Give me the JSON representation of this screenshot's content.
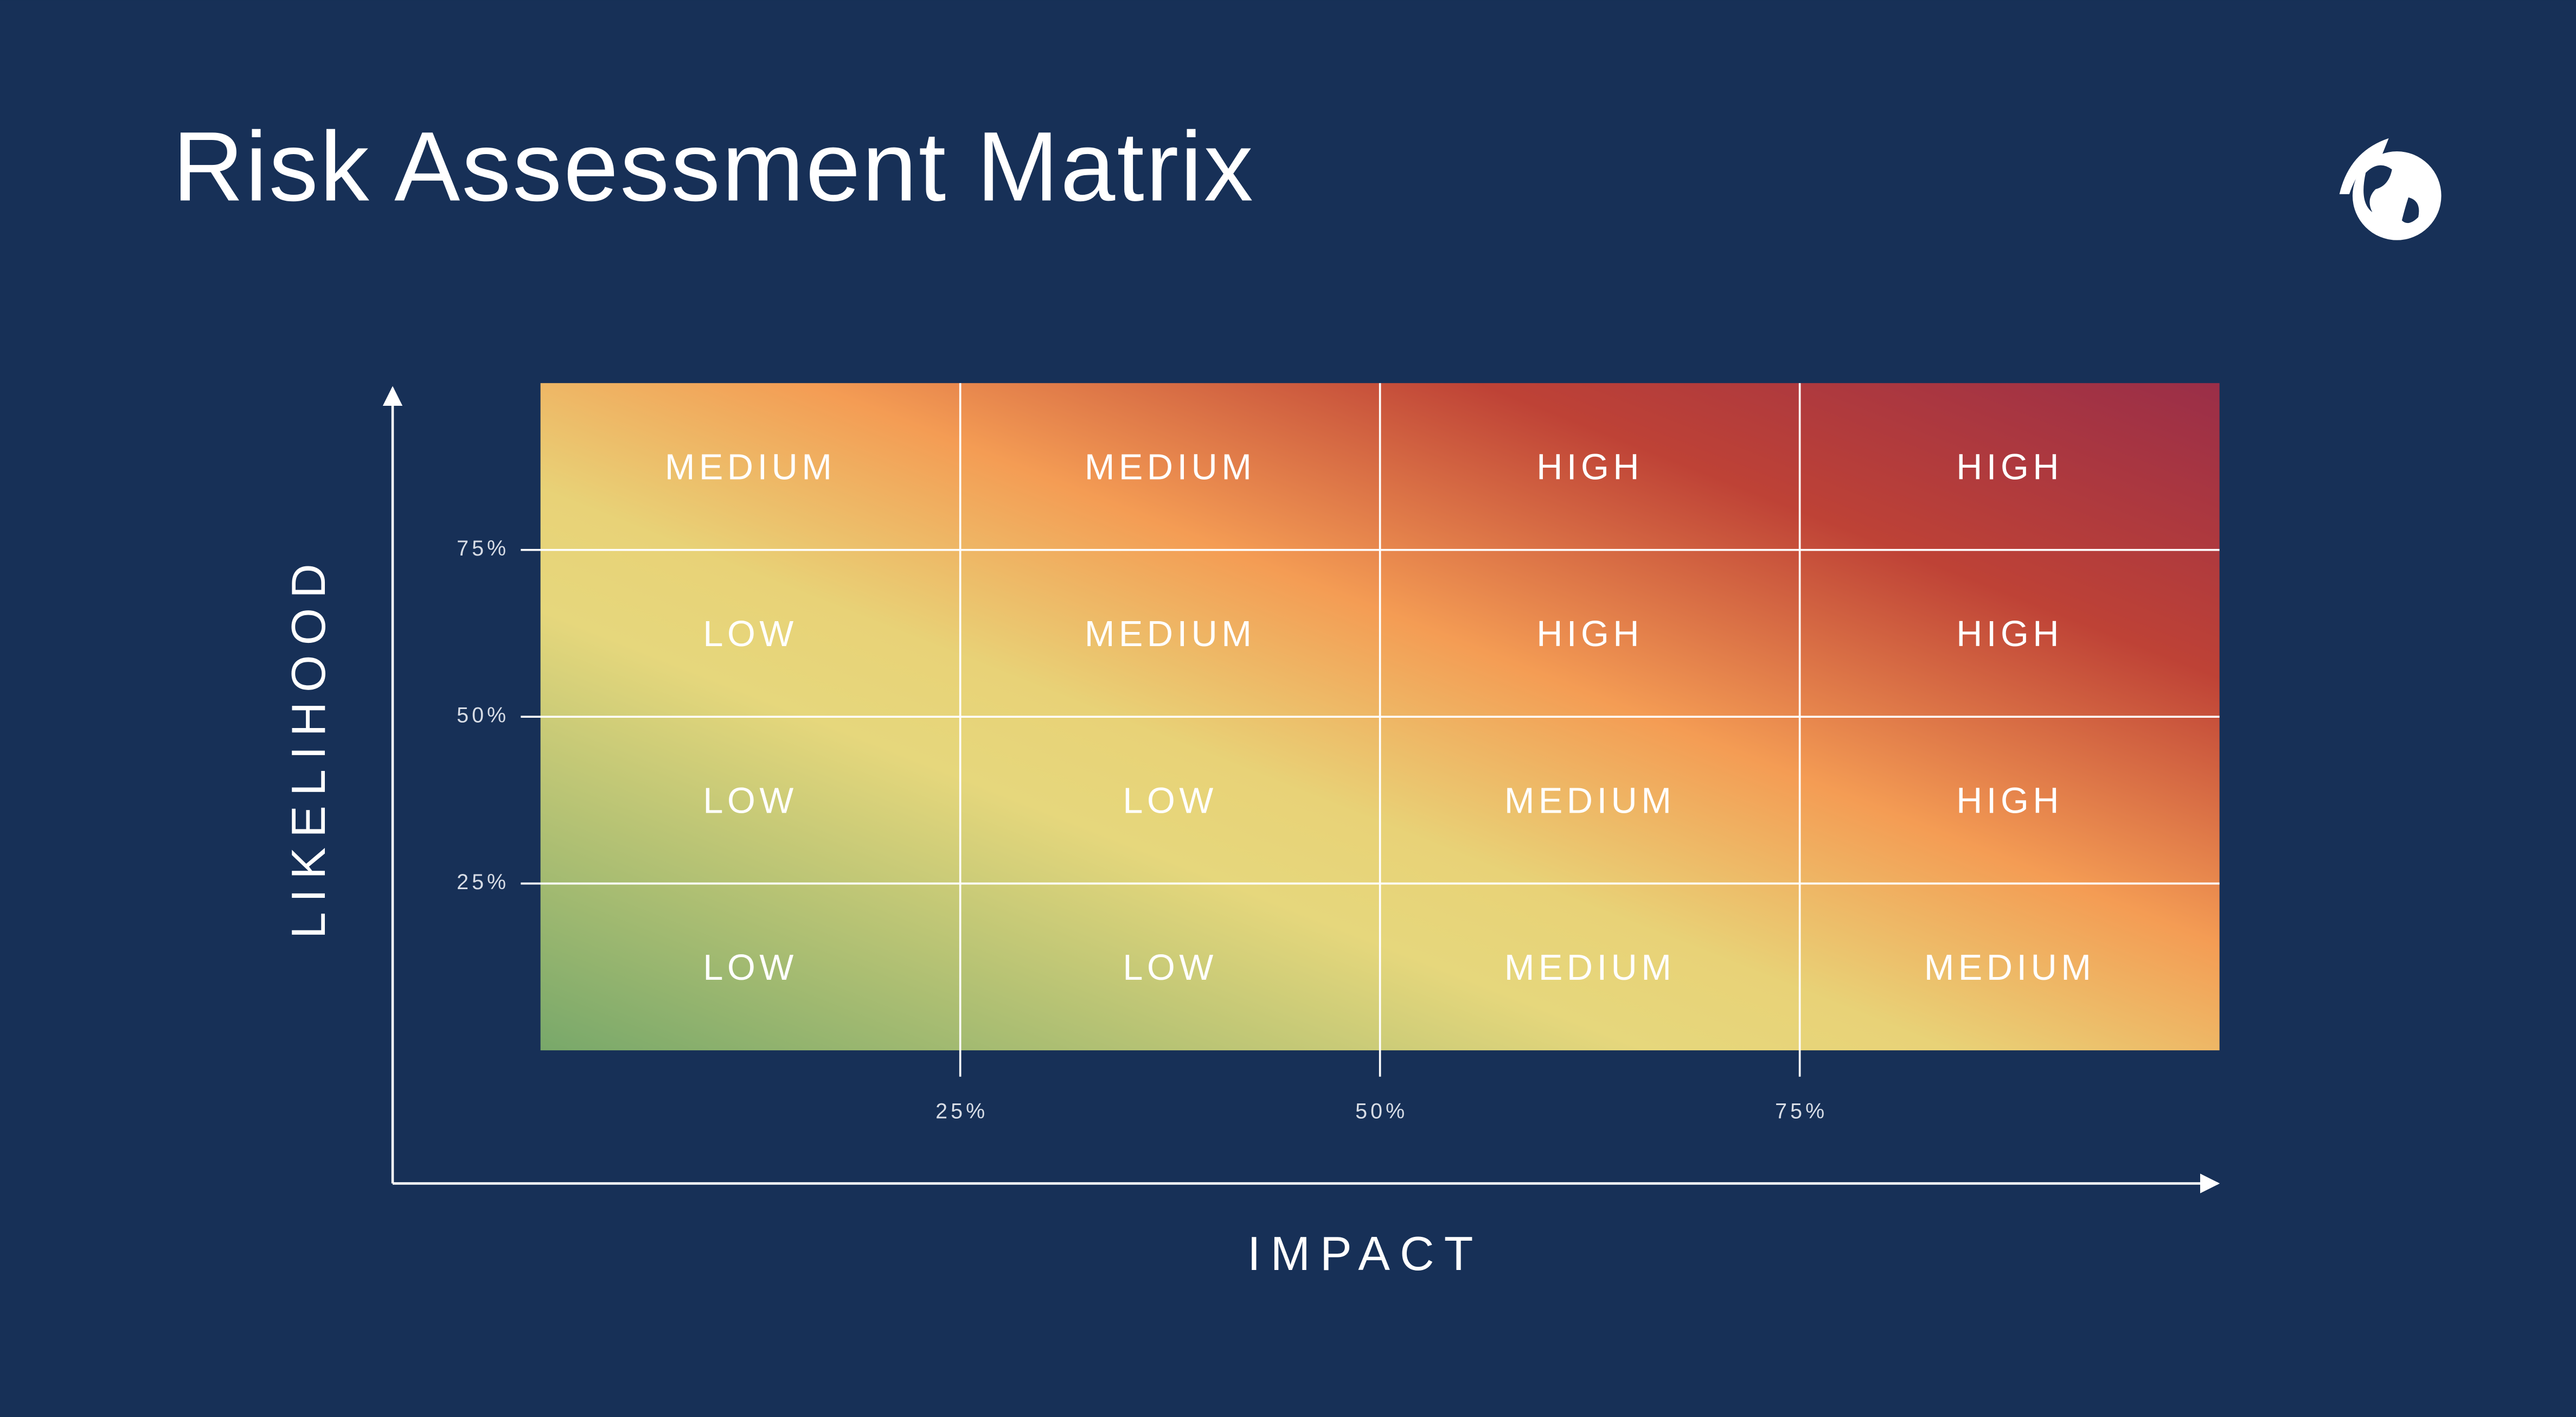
{
  "title": "Risk Assessment Matrix",
  "y_axis": {
    "label": "LIKELIHOOD",
    "ticks": [
      "75%",
      "50%",
      "25%"
    ]
  },
  "x_axis": {
    "label": "IMPACT",
    "ticks": [
      "25%",
      "50%",
      "75%"
    ]
  },
  "matrix": {
    "rows": [
      [
        "MEDIUM",
        "MEDIUM",
        "HIGH",
        "HIGH"
      ],
      [
        "LOW",
        "MEDIUM",
        "HIGH",
        "HIGH"
      ],
      [
        "LOW",
        "LOW",
        "MEDIUM",
        "HIGH"
      ],
      [
        "LOW",
        "LOW",
        "MEDIUM",
        "MEDIUM"
      ]
    ]
  }
}
